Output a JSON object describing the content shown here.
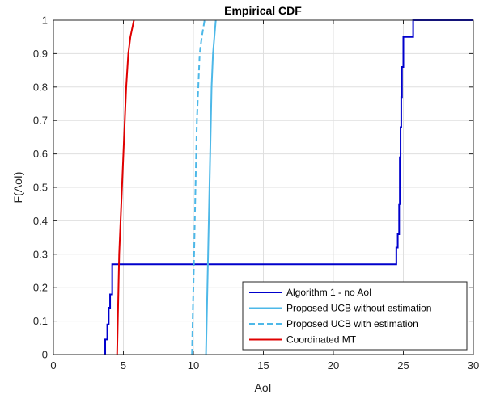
{
  "chart_data": {
    "type": "line",
    "title": "Empirical CDF",
    "xlabel": "AoI",
    "ylabel": "F(AoI)",
    "xlim": [
      0,
      30
    ],
    "ylim": [
      0,
      1
    ],
    "xticks": [
      0,
      5,
      10,
      15,
      20,
      25,
      30
    ],
    "yticks": [
      0,
      0.1,
      0.2,
      0.3,
      0.4,
      0.5,
      0.6,
      0.7,
      0.8,
      0.9,
      1
    ],
    "grid": true,
    "legend_position": "bottom-right",
    "series": [
      {
        "name": "Algorithm 1 - no AoI",
        "color": "#0000cc",
        "style": "solid",
        "points": [
          [
            3.7,
            0
          ],
          [
            3.7,
            0.045
          ],
          [
            3.85,
            0.045
          ],
          [
            3.85,
            0.09
          ],
          [
            3.95,
            0.09
          ],
          [
            3.95,
            0.14
          ],
          [
            4.05,
            0.14
          ],
          [
            4.05,
            0.18
          ],
          [
            4.2,
            0.18
          ],
          [
            4.2,
            0.27
          ],
          [
            24.5,
            0.27
          ],
          [
            24.5,
            0.32
          ],
          [
            24.6,
            0.32
          ],
          [
            24.6,
            0.36
          ],
          [
            24.7,
            0.36
          ],
          [
            24.7,
            0.45
          ],
          [
            24.75,
            0.45
          ],
          [
            24.75,
            0.59
          ],
          [
            24.8,
            0.59
          ],
          [
            24.8,
            0.68
          ],
          [
            24.85,
            0.68
          ],
          [
            24.85,
            0.77
          ],
          [
            24.9,
            0.77
          ],
          [
            24.9,
            0.86
          ],
          [
            25.0,
            0.86
          ],
          [
            25.0,
            0.95
          ],
          [
            25.7,
            0.95
          ],
          [
            25.7,
            1.0
          ],
          [
            30,
            1.0
          ]
        ]
      },
      {
        "name": "Proposed UCB without estimation",
        "color": "#4db8e8",
        "style": "solid",
        "points": [
          [
            10.9,
            0
          ],
          [
            10.95,
            0.1
          ],
          [
            11.0,
            0.2
          ],
          [
            11.05,
            0.3
          ],
          [
            11.1,
            0.4
          ],
          [
            11.15,
            0.5
          ],
          [
            11.2,
            0.6
          ],
          [
            11.25,
            0.7
          ],
          [
            11.3,
            0.8
          ],
          [
            11.4,
            0.9
          ],
          [
            11.5,
            0.95
          ],
          [
            11.6,
            1.0
          ]
        ]
      },
      {
        "name": "Proposed UCB with estimation",
        "color": "#4db8e8",
        "style": "dashed",
        "points": [
          [
            9.9,
            0
          ],
          [
            9.95,
            0.1
          ],
          [
            10.0,
            0.2
          ],
          [
            10.05,
            0.3
          ],
          [
            10.1,
            0.4
          ],
          [
            10.15,
            0.5
          ],
          [
            10.2,
            0.6
          ],
          [
            10.25,
            0.7
          ],
          [
            10.35,
            0.8
          ],
          [
            10.45,
            0.9
          ],
          [
            10.6,
            0.95
          ],
          [
            10.8,
            1.0
          ]
        ]
      },
      {
        "name": "Coordinated MT",
        "color": "#e00000",
        "style": "solid",
        "points": [
          [
            4.55,
            0
          ],
          [
            4.6,
            0.1
          ],
          [
            4.65,
            0.2
          ],
          [
            4.7,
            0.3
          ],
          [
            4.8,
            0.4
          ],
          [
            4.9,
            0.5
          ],
          [
            5.0,
            0.6
          ],
          [
            5.1,
            0.7
          ],
          [
            5.2,
            0.8
          ],
          [
            5.35,
            0.9
          ],
          [
            5.5,
            0.95
          ],
          [
            5.6,
            0.97
          ],
          [
            5.75,
            1.0
          ]
        ]
      }
    ]
  }
}
